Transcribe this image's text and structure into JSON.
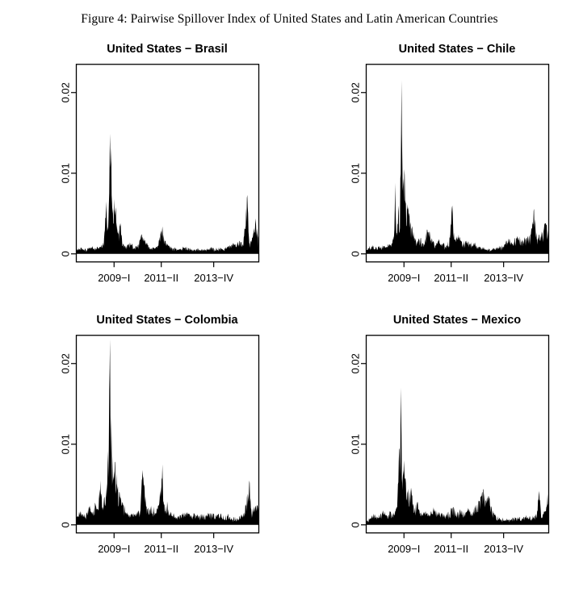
{
  "figure": {
    "caption": "Figure 4: Pairwise Spillover Index of United States and Latin American Countries"
  },
  "chart_data": [
    {
      "type": "area",
      "title": "United States − Brasil",
      "xlabel": "",
      "ylabel": "",
      "x_domain": [
        2007.2,
        2015.9
      ],
      "ylim": [
        -0.001,
        0.0235
      ],
      "grid": false,
      "legend": "none",
      "fill_color": "#000000",
      "background": "#ffffff",
      "x_ticks": [
        {
          "label": "2009−I",
          "x": 2009.0
        },
        {
          "label": "2011−II",
          "x": 2011.25
        },
        {
          "label": "2013−IV",
          "x": 2013.75
        }
      ],
      "y_ticks": [
        {
          "label": "0",
          "y": 0
        },
        {
          "label": "0.01",
          "y": 0.01
        },
        {
          "label": "0.02",
          "y": 0.02
        }
      ],
      "points_format": "[decimal_year, spillover_index]",
      "seed": 101,
      "base_noise": 0.0003,
      "points": [
        [
          2007.2,
          0.0003
        ],
        [
          2007.45,
          0.0007
        ],
        [
          2007.7,
          0.0004
        ],
        [
          2007.9,
          0.0009
        ],
        [
          2008.1,
          0.0005
        ],
        [
          2008.3,
          0.0008
        ],
        [
          2008.5,
          0.0012
        ],
        [
          2008.62,
          0.0065
        ],
        [
          2008.68,
          0.0028
        ],
        [
          2008.74,
          0.0042
        ],
        [
          2008.8,
          0.0149
        ],
        [
          2008.86,
          0.0132
        ],
        [
          2008.92,
          0.005
        ],
        [
          2009.0,
          0.0068
        ],
        [
          2009.08,
          0.0058
        ],
        [
          2009.18,
          0.0026
        ],
        [
          2009.3,
          0.0038
        ],
        [
          2009.4,
          0.0014
        ],
        [
          2009.55,
          0.0009
        ],
        [
          2009.75,
          0.0013
        ],
        [
          2009.95,
          0.0007
        ],
        [
          2010.15,
          0.001
        ],
        [
          2010.3,
          0.0024
        ],
        [
          2010.45,
          0.0018
        ],
        [
          2010.65,
          0.0009
        ],
        [
          2010.9,
          0.0007
        ],
        [
          2011.1,
          0.001
        ],
        [
          2011.3,
          0.0034
        ],
        [
          2011.42,
          0.0016
        ],
        [
          2011.6,
          0.001
        ],
        [
          2011.85,
          0.0006
        ],
        [
          2012.1,
          0.0005
        ],
        [
          2012.4,
          0.0008
        ],
        [
          2012.7,
          0.0004
        ],
        [
          2013.0,
          0.0005
        ],
        [
          2013.3,
          0.0004
        ],
        [
          2013.6,
          0.0006
        ],
        [
          2013.9,
          0.0005
        ],
        [
          2014.2,
          0.0007
        ],
        [
          2014.5,
          0.0009
        ],
        [
          2014.8,
          0.0013
        ],
        [
          2015.0,
          0.0016
        ],
        [
          2015.15,
          0.0012
        ],
        [
          2015.35,
          0.0073
        ],
        [
          2015.45,
          0.0012
        ],
        [
          2015.6,
          0.002
        ],
        [
          2015.75,
          0.0044
        ],
        [
          2015.9,
          0.001
        ]
      ]
    },
    {
      "type": "area",
      "title": "United States − Chile",
      "xlabel": "",
      "ylabel": "",
      "x_domain": [
        2007.2,
        2015.9
      ],
      "ylim": [
        -0.001,
        0.0235
      ],
      "grid": false,
      "legend": "none",
      "fill_color": "#000000",
      "background": "#ffffff",
      "x_ticks": [
        {
          "label": "2009−I",
          "x": 2009.0
        },
        {
          "label": "2011−II",
          "x": 2011.25
        },
        {
          "label": "2013−IV",
          "x": 2013.75
        }
      ],
      "y_ticks": [
        {
          "label": "0",
          "y": 0
        },
        {
          "label": "0.01",
          "y": 0.01
        },
        {
          "label": "0.02",
          "y": 0.02
        }
      ],
      "points_format": "[decimal_year, spillover_index]",
      "seed": 202,
      "base_noise": 0.0004,
      "points": [
        [
          2007.2,
          0.0004
        ],
        [
          2007.45,
          0.0008
        ],
        [
          2007.7,
          0.0005
        ],
        [
          2007.95,
          0.001
        ],
        [
          2008.15,
          0.0007
        ],
        [
          2008.35,
          0.0012
        ],
        [
          2008.5,
          0.002
        ],
        [
          2008.58,
          0.0088
        ],
        [
          2008.66,
          0.0026
        ],
        [
          2008.74,
          0.006
        ],
        [
          2008.8,
          0.0032
        ],
        [
          2008.88,
          0.0215
        ],
        [
          2008.94,
          0.0078
        ],
        [
          2009.02,
          0.0105
        ],
        [
          2009.1,
          0.0062
        ],
        [
          2009.2,
          0.0058
        ],
        [
          2009.32,
          0.0036
        ],
        [
          2009.45,
          0.0028
        ],
        [
          2009.6,
          0.0014
        ],
        [
          2009.8,
          0.0018
        ],
        [
          2009.95,
          0.001
        ],
        [
          2010.1,
          0.003
        ],
        [
          2010.25,
          0.0022
        ],
        [
          2010.45,
          0.0012
        ],
        [
          2010.7,
          0.0016
        ],
        [
          2010.95,
          0.001
        ],
        [
          2011.15,
          0.0014
        ],
        [
          2011.3,
          0.006
        ],
        [
          2011.4,
          0.0018
        ],
        [
          2011.6,
          0.0024
        ],
        [
          2011.8,
          0.0012
        ],
        [
          2012.0,
          0.0016
        ],
        [
          2012.25,
          0.0012
        ],
        [
          2012.5,
          0.0009
        ],
        [
          2012.8,
          0.0006
        ],
        [
          2013.1,
          0.0004
        ],
        [
          2013.4,
          0.0006
        ],
        [
          2013.7,
          0.0008
        ],
        [
          2013.95,
          0.0018
        ],
        [
          2014.15,
          0.0012
        ],
        [
          2014.4,
          0.0022
        ],
        [
          2014.6,
          0.0015
        ],
        [
          2014.85,
          0.002
        ],
        [
          2015.05,
          0.0024
        ],
        [
          2015.2,
          0.0056
        ],
        [
          2015.35,
          0.0018
        ],
        [
          2015.55,
          0.0028
        ],
        [
          2015.75,
          0.0038
        ],
        [
          2015.9,
          0.0028
        ]
      ]
    },
    {
      "type": "area",
      "title": "United States − Colombia",
      "xlabel": "",
      "ylabel": "",
      "x_domain": [
        2007.2,
        2015.9
      ],
      "ylim": [
        -0.001,
        0.0235
      ],
      "grid": false,
      "legend": "none",
      "fill_color": "#000000",
      "background": "#ffffff",
      "x_ticks": [
        {
          "label": "2009−I",
          "x": 2009.0
        },
        {
          "label": "2011−II",
          "x": 2011.25
        },
        {
          "label": "2013−IV",
          "x": 2013.75
        }
      ],
      "y_ticks": [
        {
          "label": "0",
          "y": 0
        },
        {
          "label": "0.01",
          "y": 0.01
        },
        {
          "label": "0.02",
          "y": 0.02
        }
      ],
      "points_format": "[decimal_year, spillover_index]",
      "seed": 303,
      "base_noise": 0.0005,
      "points": [
        [
          2007.2,
          0.0008
        ],
        [
          2007.4,
          0.0014
        ],
        [
          2007.6,
          0.001
        ],
        [
          2007.8,
          0.0022
        ],
        [
          2007.95,
          0.0016
        ],
        [
          2008.1,
          0.0026
        ],
        [
          2008.25,
          0.0018
        ],
        [
          2008.35,
          0.0055
        ],
        [
          2008.45,
          0.0022
        ],
        [
          2008.55,
          0.0035
        ],
        [
          2008.65,
          0.0045
        ],
        [
          2008.72,
          0.0092
        ],
        [
          2008.8,
          0.023
        ],
        [
          2008.87,
          0.0135
        ],
        [
          2008.95,
          0.006
        ],
        [
          2009.05,
          0.0078
        ],
        [
          2009.15,
          0.0048
        ],
        [
          2009.28,
          0.0035
        ],
        [
          2009.4,
          0.0028
        ],
        [
          2009.55,
          0.0016
        ],
        [
          2009.7,
          0.0012
        ],
        [
          2009.9,
          0.0015
        ],
        [
          2010.05,
          0.001
        ],
        [
          2010.25,
          0.0018
        ],
        [
          2010.35,
          0.0068
        ],
        [
          2010.45,
          0.0046
        ],
        [
          2010.6,
          0.0018
        ],
        [
          2010.8,
          0.0024
        ],
        [
          2011.0,
          0.0015
        ],
        [
          2011.15,
          0.0026
        ],
        [
          2011.3,
          0.0075
        ],
        [
          2011.4,
          0.0026
        ],
        [
          2011.55,
          0.0024
        ],
        [
          2011.75,
          0.0012
        ],
        [
          2011.95,
          0.0008
        ],
        [
          2012.2,
          0.0012
        ],
        [
          2012.45,
          0.0015
        ],
        [
          2012.7,
          0.001
        ],
        [
          2012.95,
          0.0013
        ],
        [
          2013.2,
          0.0009
        ],
        [
          2013.45,
          0.0013
        ],
        [
          2013.7,
          0.0011
        ],
        [
          2013.95,
          0.0012
        ],
        [
          2014.2,
          0.0008
        ],
        [
          2014.45,
          0.0009
        ],
        [
          2014.7,
          0.0005
        ],
        [
          2014.95,
          0.0007
        ],
        [
          2015.2,
          0.001
        ],
        [
          2015.45,
          0.0055
        ],
        [
          2015.55,
          0.0014
        ],
        [
          2015.7,
          0.0022
        ],
        [
          2015.9,
          0.0025
        ]
      ]
    },
    {
      "type": "area",
      "title": "United States − Mexico",
      "xlabel": "",
      "ylabel": "",
      "x_domain": [
        2007.2,
        2015.9
      ],
      "ylim": [
        -0.001,
        0.0235
      ],
      "grid": false,
      "legend": "none",
      "fill_color": "#000000",
      "background": "#ffffff",
      "x_ticks": [
        {
          "label": "2009−I",
          "x": 2009.0
        },
        {
          "label": "2011−II",
          "x": 2011.25
        },
        {
          "label": "2013−IV",
          "x": 2013.75
        }
      ],
      "y_ticks": [
        {
          "label": "0",
          "y": 0
        },
        {
          "label": "0.01",
          "y": 0.01
        },
        {
          "label": "0.02",
          "y": 0.02
        }
      ],
      "points_format": "[decimal_year, spillover_index]",
      "seed": 404,
      "base_noise": 0.0004,
      "points": [
        [
          2007.2,
          0.0004
        ],
        [
          2007.4,
          0.0008
        ],
        [
          2007.6,
          0.0012
        ],
        [
          2007.8,
          0.0009
        ],
        [
          2008.0,
          0.0015
        ],
        [
          2008.2,
          0.001
        ],
        [
          2008.35,
          0.0016
        ],
        [
          2008.5,
          0.0012
        ],
        [
          2008.65,
          0.0022
        ],
        [
          2008.75,
          0.0078
        ],
        [
          2008.85,
          0.017
        ],
        [
          2008.92,
          0.0062
        ],
        [
          2009.0,
          0.008
        ],
        [
          2009.1,
          0.0052
        ],
        [
          2009.2,
          0.0045
        ],
        [
          2009.35,
          0.0042
        ],
        [
          2009.5,
          0.0018
        ],
        [
          2009.65,
          0.0028
        ],
        [
          2009.8,
          0.0012
        ],
        [
          2010.0,
          0.0015
        ],
        [
          2010.2,
          0.001
        ],
        [
          2010.4,
          0.0022
        ],
        [
          2010.6,
          0.0012
        ],
        [
          2010.8,
          0.0018
        ],
        [
          2011.0,
          0.001
        ],
        [
          2011.2,
          0.0016
        ],
        [
          2011.35,
          0.0022
        ],
        [
          2011.5,
          0.0012
        ],
        [
          2011.7,
          0.0018
        ],
        [
          2011.9,
          0.0014
        ],
        [
          2012.1,
          0.002
        ],
        [
          2012.3,
          0.0016
        ],
        [
          2012.5,
          0.0026
        ],
        [
          2012.65,
          0.0035
        ],
        [
          2012.8,
          0.0044
        ],
        [
          2012.9,
          0.003
        ],
        [
          2013.05,
          0.0035
        ],
        [
          2013.2,
          0.0018
        ],
        [
          2013.4,
          0.001
        ],
        [
          2013.6,
          0.0006
        ],
        [
          2013.8,
          0.0005
        ],
        [
          2014.0,
          0.0006
        ],
        [
          2014.3,
          0.0008
        ],
        [
          2014.6,
          0.0007
        ],
        [
          2014.9,
          0.0009
        ],
        [
          2015.1,
          0.0008
        ],
        [
          2015.3,
          0.0012
        ],
        [
          2015.45,
          0.0042
        ],
        [
          2015.55,
          0.001
        ],
        [
          2015.7,
          0.0015
        ],
        [
          2015.85,
          0.0038
        ],
        [
          2015.9,
          0.002
        ]
      ]
    }
  ]
}
